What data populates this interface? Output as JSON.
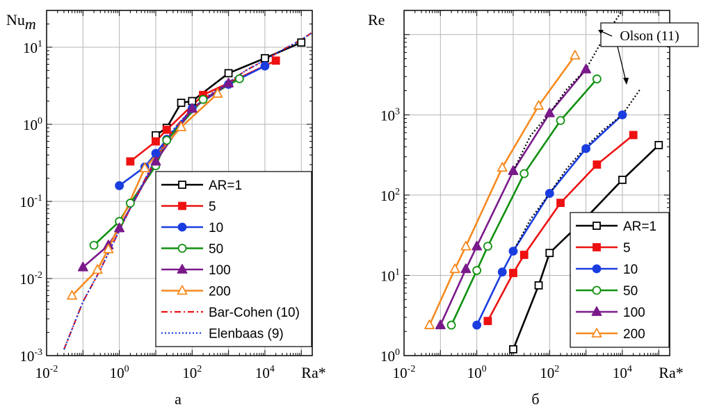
{
  "chart_data": [
    {
      "type": "line",
      "panel_label": "а",
      "ylabel_base": "Nu",
      "ylabel_sub": "m",
      "xlabel": "Ra*",
      "x_scale": "log",
      "y_scale": "log",
      "xlim": [
        0.01,
        200000
      ],
      "ylim": [
        0.001,
        30
      ],
      "x_ticks": [
        {
          "value": 0.01,
          "base": "10",
          "exp": "-2"
        },
        {
          "value": 1,
          "base": "10",
          "exp": "0"
        },
        {
          "value": 100,
          "base": "10",
          "exp": "2"
        },
        {
          "value": 10000,
          "base": "10",
          "exp": "4"
        }
      ],
      "y_ticks": [
        {
          "value": 0.001,
          "base": "10",
          "exp": "-3"
        },
        {
          "value": 0.01,
          "base": "10",
          "exp": "-2"
        },
        {
          "value": 0.1,
          "base": "10",
          "exp": "-1"
        },
        {
          "value": 1,
          "base": "10",
          "exp": "0"
        },
        {
          "value": 10,
          "base": "10",
          "exp": "1"
        }
      ],
      "grid": true,
      "legend_position": "bottom-right",
      "series": [
        {
          "name": "AR=1",
          "color": "#000000",
          "marker": "square",
          "filled": false,
          "x": [
            10,
            20,
            50,
            100,
            1000,
            10000,
            100000
          ],
          "y": [
            0.72,
            0.9,
            1.9,
            2.0,
            4.6,
            7.2,
            11.5
          ]
        },
        {
          "name": "5",
          "color": "#ee1111",
          "marker": "square",
          "filled": true,
          "x": [
            2,
            10,
            20,
            200,
            20000
          ],
          "y": [
            0.33,
            0.6,
            0.85,
            2.4,
            6.7
          ]
        },
        {
          "name": "10",
          "color": "#1a3de0",
          "marker": "circle",
          "filled": true,
          "x": [
            1,
            5,
            10,
            20,
            100,
            1000,
            10000
          ],
          "y": [
            0.16,
            0.28,
            0.42,
            0.64,
            1.6,
            3.3,
            5.7
          ]
        },
        {
          "name": "50",
          "color": "#109010",
          "marker": "circle",
          "filled": false,
          "x": [
            0.2,
            1,
            2,
            10,
            20,
            200,
            2000
          ],
          "y": [
            0.027,
            0.055,
            0.095,
            0.29,
            0.62,
            2.1,
            3.9
          ]
        },
        {
          "name": "100",
          "color": "#7a1a8a",
          "marker": "triangle",
          "filled": true,
          "x": [
            0.1,
            0.5,
            1,
            10,
            100,
            1000
          ],
          "y": [
            0.014,
            0.027,
            0.045,
            0.33,
            1.6,
            3.4
          ]
        },
        {
          "name": "200",
          "color": "#f58a1f",
          "marker": "triangle",
          "filled": false,
          "x": [
            0.05,
            0.25,
            0.5,
            5,
            50,
            500
          ],
          "y": [
            0.006,
            0.013,
            0.024,
            0.27,
            0.92,
            2.5
          ]
        },
        {
          "name": "Bar-Cohen (10)",
          "color": "#ee1111",
          "style": "dashdot",
          "x": [
            0.03,
            0.1,
            0.3,
            1,
            3,
            10,
            30,
            100,
            300,
            1000,
            3000,
            10000,
            30000,
            100000,
            200000
          ],
          "y": [
            0.0012,
            0.005,
            0.013,
            0.042,
            0.12,
            0.36,
            0.85,
            1.6,
            2.4,
            3.5,
            5.0,
            6.8,
            9.2,
            12.5,
            15.5
          ]
        },
        {
          "name": "Elenbaas (9)",
          "color": "#1a3de0",
          "style": "dotted",
          "x": [
            0.03,
            0.1,
            0.3,
            1,
            3,
            10,
            30,
            100,
            300,
            1000,
            3000,
            10000,
            30000,
            100000,
            200000
          ],
          "y": [
            0.0012,
            0.005,
            0.013,
            0.042,
            0.12,
            0.36,
            0.85,
            1.6,
            2.4,
            3.5,
            5.0,
            6.8,
            9.2,
            12.5,
            15.5
          ]
        }
      ]
    },
    {
      "type": "line",
      "panel_label": "б",
      "ylabel_base": "Re",
      "xlabel": "Ra*",
      "x_scale": "log",
      "y_scale": "log",
      "xlim": [
        0.01,
        200000
      ],
      "ylim": [
        1,
        20000
      ],
      "x_ticks": [
        {
          "value": 0.01,
          "base": "10",
          "exp": "-2"
        },
        {
          "value": 1,
          "base": "10",
          "exp": "0"
        },
        {
          "value": 100,
          "base": "10",
          "exp": "2"
        },
        {
          "value": 10000,
          "base": "10",
          "exp": "4"
        }
      ],
      "y_ticks": [
        {
          "value": 1,
          "base": "10",
          "exp": "0"
        },
        {
          "value": 10,
          "base": "10",
          "exp": "1"
        },
        {
          "value": 100,
          "base": "10",
          "exp": "2"
        },
        {
          "value": 1000,
          "base": "10",
          "exp": "3"
        }
      ],
      "grid": true,
      "legend_position": "bottom-right",
      "annotation": "Olson (11)",
      "series": [
        {
          "name": "AR=1",
          "color": "#000000",
          "marker": "square",
          "filled": false,
          "x": [
            10,
            50,
            100,
            1000,
            10000,
            100000
          ],
          "y": [
            1.2,
            7.5,
            19,
            52,
            155,
            420
          ]
        },
        {
          "name": "5",
          "color": "#ee1111",
          "marker": "square",
          "filled": true,
          "x": [
            2,
            10,
            20,
            200,
            2000,
            20000
          ],
          "y": [
            2.7,
            10.7,
            18,
            80,
            240,
            560
          ]
        },
        {
          "name": "10",
          "color": "#1a3de0",
          "marker": "circle",
          "filled": true,
          "x": [
            1,
            5,
            10,
            100,
            1000,
            10000
          ],
          "y": [
            2.4,
            11,
            20,
            105,
            380,
            1000
          ]
        },
        {
          "name": "50",
          "color": "#109010",
          "marker": "circle",
          "filled": false,
          "x": [
            0.2,
            1,
            2,
            20,
            200,
            2000
          ],
          "y": [
            2.4,
            11.5,
            23,
            185,
            850,
            2800
          ]
        },
        {
          "name": "100",
          "color": "#7a1a8a",
          "marker": "triangle",
          "filled": true,
          "x": [
            0.1,
            0.5,
            1,
            10,
            100,
            1000
          ],
          "y": [
            2.4,
            12,
            23,
            200,
            1050,
            3700
          ]
        },
        {
          "name": "200",
          "color": "#f58a1f",
          "marker": "triangle",
          "filled": false,
          "x": [
            0.05,
            0.25,
            0.5,
            5,
            50,
            500
          ],
          "y": [
            2.4,
            12,
            23,
            220,
            1300,
            5500
          ]
        },
        {
          "name": "Olson (11) A",
          "color": "#000000",
          "style": "dotted",
          "in_legend": false,
          "x": [
            10,
            30,
            100,
            300,
            1000,
            3000,
            10000,
            30000
          ],
          "y": [
            20,
            50,
            105,
            215,
            400,
            650,
            1000,
            2050
          ]
        },
        {
          "name": "Olson (11) B",
          "color": "#000000",
          "style": "dotted",
          "in_legend": false,
          "x": [
            10,
            30,
            100,
            300,
            1000,
            3000,
            10000
          ],
          "y": [
            200,
            550,
            1050,
            2100,
            3700,
            9000,
            20000
          ]
        }
      ]
    }
  ]
}
